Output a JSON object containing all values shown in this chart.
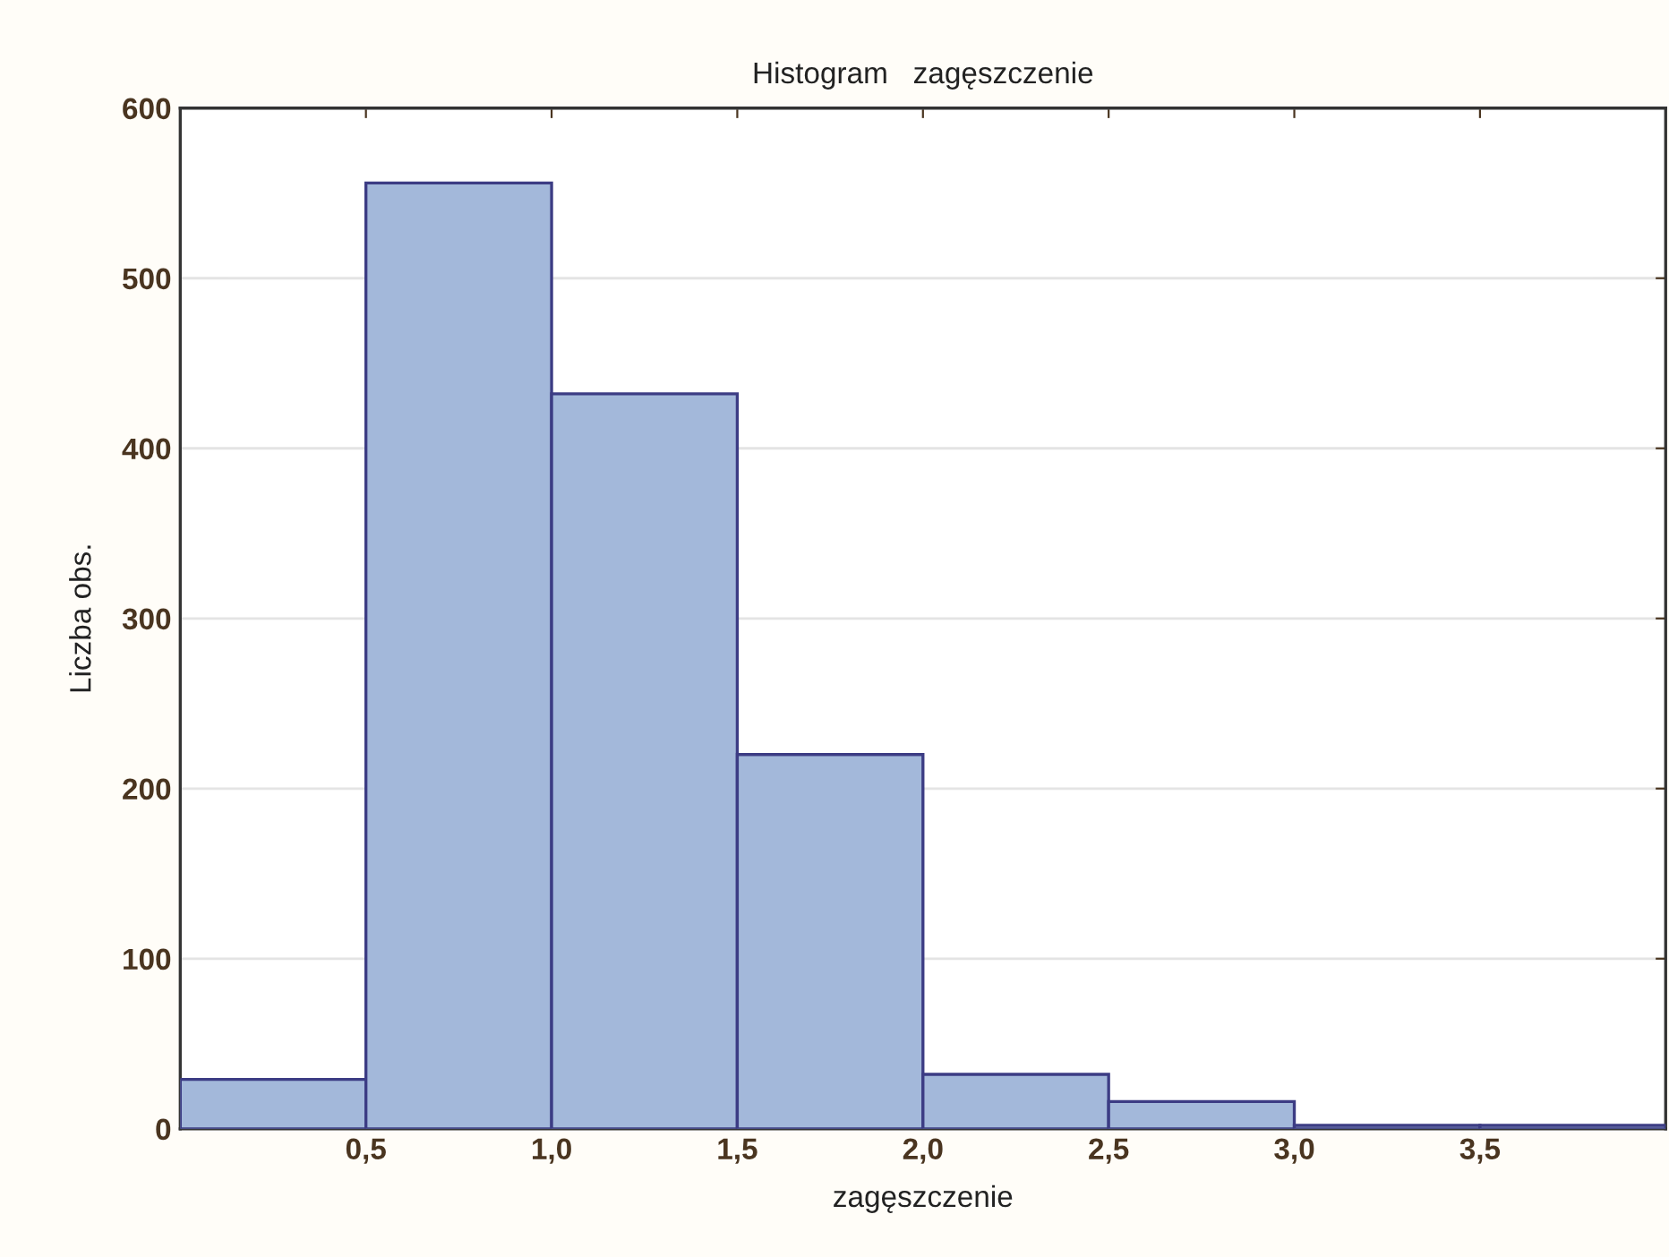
{
  "chart_data": {
    "type": "histogram",
    "title": "Histogram   zagęszczenie",
    "xlabel": "zagęszczenie",
    "ylabel": "Liczba obs.",
    "bins": [
      0,
      0.5,
      1.0,
      1.5,
      2.0,
      2.5,
      3.0,
      3.5,
      4.0
    ],
    "values": [
      29,
      556,
      432,
      220,
      32,
      16,
      2,
      2
    ],
    "color": "#a3b8da",
    "xlim": [
      0,
      4
    ],
    "ylim": [
      0,
      600
    ],
    "xticks": [
      {
        "value": 0.5,
        "label": "0,5"
      },
      {
        "value": 1.0,
        "label": "1,0"
      },
      {
        "value": 1.5,
        "label": "1,5"
      },
      {
        "value": 2.0,
        "label": "2,0"
      },
      {
        "value": 2.5,
        "label": "2,5"
      },
      {
        "value": 3.0,
        "label": "3,0"
      },
      {
        "value": 3.5,
        "label": "3,5"
      }
    ],
    "yticks": [
      0,
      100,
      200,
      300,
      400,
      500,
      600
    ],
    "grid": "y"
  }
}
